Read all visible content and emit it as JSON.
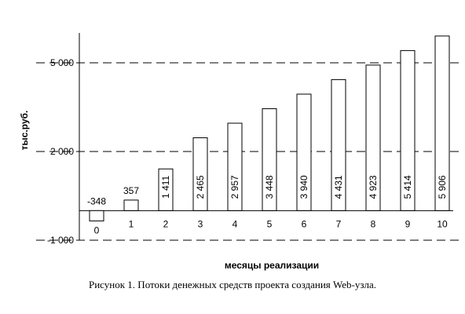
{
  "caption": "Рисунок 1. Потоки денежных средств проекта создания Web-узла.",
  "chart_data": {
    "type": "bar",
    "title": "",
    "xlabel": "месяцы реализации",
    "ylabel": "тыс.руб.",
    "categories": [
      "0",
      "1",
      "2",
      "3",
      "4",
      "5",
      "6",
      "7",
      "8",
      "9",
      "10"
    ],
    "values": [
      -348,
      357,
      1411,
      2465,
      2957,
      3448,
      3940,
      4431,
      4923,
      5414,
      5906
    ],
    "value_labels": [
      "-348",
      "357",
      "1 411",
      "2 465",
      "2 957",
      "3 448",
      "3 940",
      "4 431",
      "4 923",
      "5 414",
      "5 906"
    ],
    "yticks": [
      -1000,
      2000,
      5000
    ],
    "ytick_labels": [
      "-1 000",
      "2 000",
      "5 000"
    ],
    "ylim": [
      -1000,
      6000
    ],
    "grid": "dashed horizontal at y-ticks",
    "legend": "none",
    "bar_fill": "#ffffff",
    "bar_stroke": "#000000"
  }
}
